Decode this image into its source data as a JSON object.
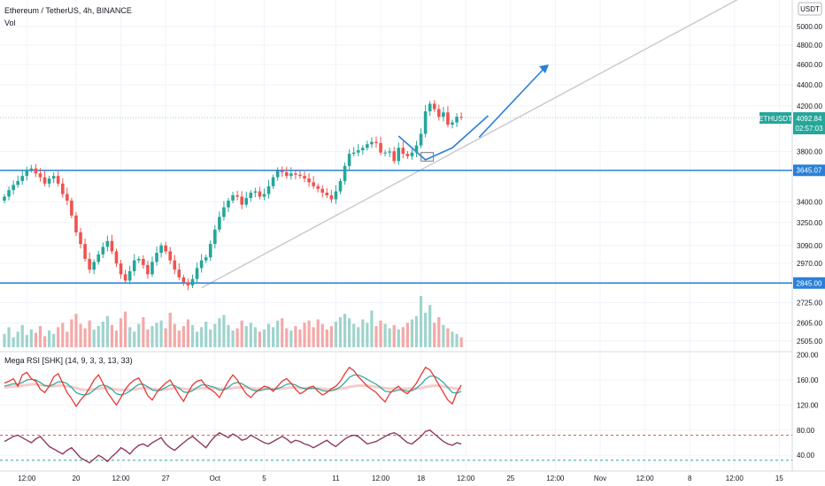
{
  "header": {
    "symbol_line": "Ethereum / TetherUS, 4h, BINANCE",
    "volume_label": "Vol",
    "currency": "USDT"
  },
  "price_label": {
    "symbol": "ETHUSDT",
    "price": "4092.84",
    "countdown": "02:57:03"
  },
  "levels": [
    {
      "label": "3645.07",
      "value": 3645.07,
      "color": "#2a80d8"
    },
    {
      "label": "2845.00",
      "value": 2845.0,
      "color": "#2a80d8"
    }
  ],
  "colors": {
    "up": "#26a69a",
    "down": "#ef5350",
    "line": "#2a80d8",
    "trend": "#c8c8c8",
    "rsi_fast": "#e53935",
    "rsi_slow": "#26a69a",
    "osc": "#8e3a59"
  },
  "time_axis": [
    {
      "label": "12:00",
      "i": 5
    },
    {
      "label": "20",
      "i": 16
    },
    {
      "label": "12:00",
      "i": 26
    },
    {
      "label": "27",
      "i": 36
    },
    {
      "label": "Oct",
      "i": 47
    },
    {
      "label": "5",
      "i": 58
    },
    {
      "label": "11",
      "i": 74
    },
    {
      "label": "12:00",
      "i": 84
    },
    {
      "label": "18",
      "i": 93
    },
    {
      "label": "12:00",
      "i": 103
    },
    {
      "label": "25",
      "i": 113
    },
    {
      "label": "12:00",
      "i": 123
    },
    {
      "label": "Nov",
      "i": 133
    },
    {
      "label": "12:00",
      "i": 143
    },
    {
      "label": "8",
      "i": 153
    },
    {
      "label": "12:00",
      "i": 163
    },
    {
      "label": "15",
      "i": 173
    }
  ],
  "rsi_panel": {
    "title": "Mega RSI [SHK] (14, 9, 3, 3, 13, 33)",
    "ticks": [
      "200.00",
      "160.00",
      "120.00",
      "80.00",
      "40.00"
    ]
  },
  "chart_data": {
    "type": "candlestick",
    "price_axis": {
      "scale": "log",
      "range": [
        2470,
        5250
      ],
      "ticks": [
        "5000.00",
        "4800.00",
        "4600.00",
        "4400.00",
        "4200.00",
        "3800.00",
        "3400.00",
        "3250.00",
        "3090.00",
        "2970.00",
        "2725.00",
        "2605.00",
        "2505.00"
      ]
    },
    "close": [
      3440,
      3490,
      3530,
      3560,
      3600,
      3650,
      3660,
      3620,
      3590,
      3540,
      3580,
      3600,
      3540,
      3460,
      3410,
      3300,
      3180,
      3100,
      3000,
      2930,
      2980,
      3030,
      3080,
      3120,
      3050,
      2970,
      2900,
      2860,
      2920,
      2990,
      3000,
      2960,
      2900,
      2980,
      3040,
      3090,
      3050,
      2990,
      2930,
      2880,
      2850,
      2830,
      2870,
      2940,
      2990,
      3010,
      3100,
      3200,
      3290,
      3360,
      3410,
      3450,
      3440,
      3380,
      3430,
      3470,
      3480,
      3440,
      3460,
      3520,
      3590,
      3640,
      3630,
      3600,
      3620,
      3610,
      3600,
      3580,
      3550,
      3520,
      3500,
      3470,
      3450,
      3420,
      3480,
      3560,
      3680,
      3780,
      3790,
      3810,
      3830,
      3860,
      3880,
      3870,
      3790,
      3790,
      3800,
      3720,
      3830,
      3780,
      3760,
      3790,
      3850,
      3950,
      4150,
      4220,
      4170,
      4100,
      4140,
      4030,
      4050,
      4100,
      4092.84
    ],
    "volume": [
      12,
      18,
      9,
      14,
      20,
      11,
      16,
      13,
      19,
      10,
      15,
      12,
      18,
      22,
      14,
      25,
      30,
      21,
      17,
      24,
      16,
      19,
      23,
      28,
      20,
      15,
      26,
      32,
      18,
      14,
      21,
      27,
      16,
      19,
      22,
      24,
      17,
      31,
      21,
      15,
      19,
      25,
      20,
      14,
      18,
      23,
      16,
      21,
      26,
      29,
      20,
      15,
      17,
      24,
      19,
      22,
      18,
      14,
      16,
      21,
      18,
      24,
      26,
      17,
      15,
      19,
      16,
      22,
      24,
      18,
      25,
      21,
      16,
      19,
      23,
      27,
      30,
      26,
      21,
      18,
      25,
      22,
      33,
      19,
      24,
      21,
      17,
      20,
      16,
      18,
      22,
      25,
      28,
      46,
      31,
      38,
      22,
      27,
      20,
      17,
      14,
      12,
      9
    ],
    "rsi_fast": [
      155,
      158,
      162,
      150,
      168,
      172,
      162,
      158,
      145,
      140,
      150,
      165,
      170,
      155,
      140,
      130,
      118,
      128,
      136,
      147,
      160,
      168,
      155,
      140,
      130,
      120,
      132,
      145,
      154,
      160,
      163,
      150,
      135,
      128,
      140,
      148,
      155,
      160,
      148,
      136,
      126,
      140,
      152,
      158,
      160,
      150,
      145,
      140,
      132,
      145,
      158,
      168,
      160,
      148,
      138,
      132,
      140,
      145,
      150,
      148,
      142,
      150,
      158,
      162,
      155,
      145,
      138,
      142,
      148,
      150,
      142,
      136,
      140,
      146,
      150,
      158,
      170,
      180,
      175,
      165,
      158,
      150,
      145,
      140,
      132,
      125,
      138,
      145,
      150,
      142,
      138,
      146,
      155,
      168,
      180,
      176,
      165,
      152,
      140,
      128,
      122,
      140,
      152
    ],
    "rsi_slow": [
      150,
      152,
      154,
      153,
      156,
      160,
      161,
      160,
      156,
      151,
      150,
      153,
      157,
      157,
      154,
      148,
      140,
      137,
      136,
      138,
      144,
      150,
      152,
      150,
      145,
      138,
      136,
      138,
      142,
      148,
      153,
      153,
      149,
      144,
      143,
      144,
      148,
      152,
      151,
      147,
      141,
      140,
      143,
      148,
      152,
      152,
      150,
      148,
      144,
      144,
      148,
      154,
      156,
      154,
      150,
      145,
      143,
      143,
      145,
      146,
      145,
      146,
      149,
      153,
      154,
      152,
      148,
      146,
      146,
      147,
      146,
      143,
      142,
      143,
      145,
      149,
      156,
      164,
      168,
      168,
      165,
      161,
      157,
      153,
      148,
      142,
      141,
      142,
      144,
      144,
      142,
      143,
      147,
      153,
      161,
      166,
      166,
      162,
      156,
      148,
      140,
      139,
      142
    ],
    "rsi_ribbon": [
      148,
      149,
      150,
      150,
      151,
      152,
      153,
      153,
      152,
      151,
      150,
      150,
      151,
      151,
      150,
      149,
      147,
      145,
      144,
      144,
      145,
      146,
      147,
      147,
      146,
      145,
      144,
      144,
      144,
      145,
      146,
      147,
      147,
      146,
      145,
      145,
      145,
      146,
      147,
      147,
      146,
      145,
      145,
      146,
      147,
      147,
      147,
      147,
      146,
      146,
      146,
      147,
      148,
      148,
      148,
      147,
      146,
      146,
      146,
      146,
      146,
      146,
      146,
      147,
      148,
      148,
      147,
      147,
      147,
      147,
      147,
      146,
      145,
      145,
      145,
      146,
      147,
      149,
      150,
      151,
      151,
      151,
      150,
      149,
      148,
      147,
      146,
      146,
      146,
      146,
      146,
      146,
      146,
      147,
      149,
      150,
      151,
      151,
      150,
      148,
      147,
      146,
      146
    ],
    "oscillator": [
      62,
      66,
      70,
      72,
      68,
      64,
      60,
      66,
      70,
      62,
      54,
      50,
      46,
      42,
      48,
      52,
      44,
      36,
      32,
      28,
      34,
      40,
      36,
      30,
      38,
      44,
      52,
      48,
      42,
      50,
      56,
      58,
      54,
      60,
      64,
      68,
      58,
      52,
      48,
      54,
      60,
      66,
      70,
      64,
      58,
      52,
      62,
      70,
      76,
      72,
      68,
      74,
      70,
      64,
      66,
      72,
      68,
      64,
      60,
      58,
      62,
      66,
      70,
      66,
      60,
      64,
      62,
      58,
      56,
      52,
      56,
      60,
      64,
      58,
      54,
      60,
      66,
      70,
      72,
      70,
      64,
      58,
      60,
      62,
      66,
      70,
      74,
      76,
      72,
      66,
      60,
      58,
      64,
      70,
      78,
      80,
      74,
      68,
      62,
      58,
      56,
      60,
      58
    ],
    "oscillator_levels": {
      "upper": 72,
      "lower": 32
    }
  }
}
